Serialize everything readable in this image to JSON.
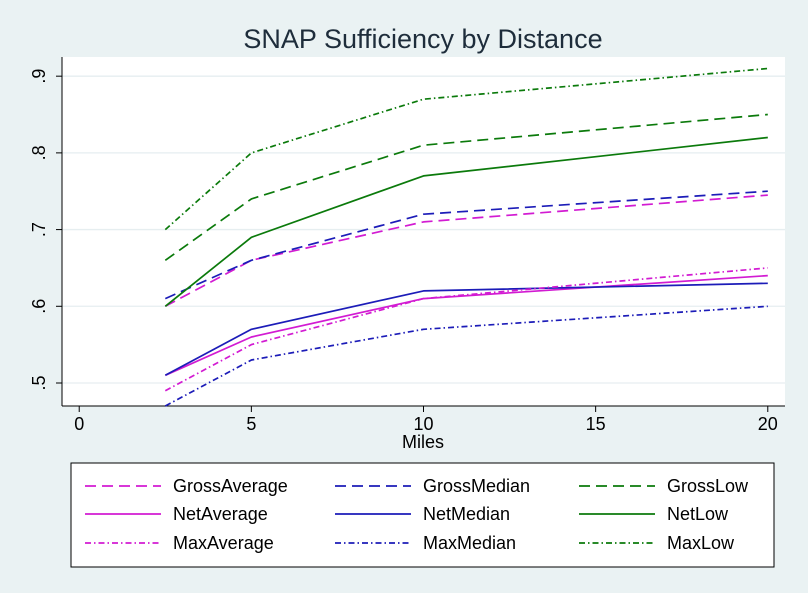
{
  "chart_data": {
    "type": "line",
    "title": "SNAP Sufficiency by Distance",
    "xlabel": "Miles",
    "ylabel": "",
    "xlim": [
      -0.5,
      20.5
    ],
    "ylim": [
      0.47,
      0.925
    ],
    "xticks": [
      0,
      5,
      10,
      15,
      20
    ],
    "xtick_labels": [
      "0",
      "5",
      "10",
      "15",
      "20"
    ],
    "yticks": [
      0.5,
      0.6,
      0.7,
      0.8,
      0.9
    ],
    "ytick_labels": [
      ".5",
      ".6",
      ".7",
      ".8",
      ".9"
    ],
    "grid": "horizontal",
    "legend_position": "bottom",
    "x": [
      2.5,
      5,
      10,
      20
    ],
    "series": [
      {
        "name": "GrossAverage",
        "values": [
          0.6,
          0.66,
          0.71,
          0.745
        ],
        "color": "#d21bd2",
        "style": "dash"
      },
      {
        "name": "GrossMedian",
        "values": [
          0.61,
          0.66,
          0.72,
          0.75
        ],
        "color": "#1c1cb8",
        "style": "dash"
      },
      {
        "name": "GrossLow",
        "values": [
          0.66,
          0.74,
          0.81,
          0.85
        ],
        "color": "#0b7a0b",
        "style": "dash"
      },
      {
        "name": "NetAverage",
        "values": [
          0.51,
          0.56,
          0.61,
          0.64
        ],
        "color": "#d21bd2",
        "style": "solid"
      },
      {
        "name": "NetMedian",
        "values": [
          0.51,
          0.57,
          0.62,
          0.63
        ],
        "color": "#1c1cb8",
        "style": "solid"
      },
      {
        "name": "NetLow",
        "values": [
          0.6,
          0.69,
          0.77,
          0.82
        ],
        "color": "#0b7a0b",
        "style": "solid"
      },
      {
        "name": "MaxAverage",
        "values": [
          0.49,
          0.55,
          0.61,
          0.65
        ],
        "color": "#d21bd2",
        "style": "dashdot"
      },
      {
        "name": "MaxMedian",
        "values": [
          0.47,
          0.53,
          0.57,
          0.6
        ],
        "color": "#1c1cb8",
        "style": "dashdot"
      },
      {
        "name": "MaxLow",
        "values": [
          0.7,
          0.8,
          0.87,
          0.91
        ],
        "color": "#0b7a0b",
        "style": "dashdot"
      }
    ],
    "colors": {
      "background": "#eaf2f3",
      "plot_background": "#ffffff",
      "grid": "#e6eef0",
      "title": "#1e2d3b"
    }
  }
}
